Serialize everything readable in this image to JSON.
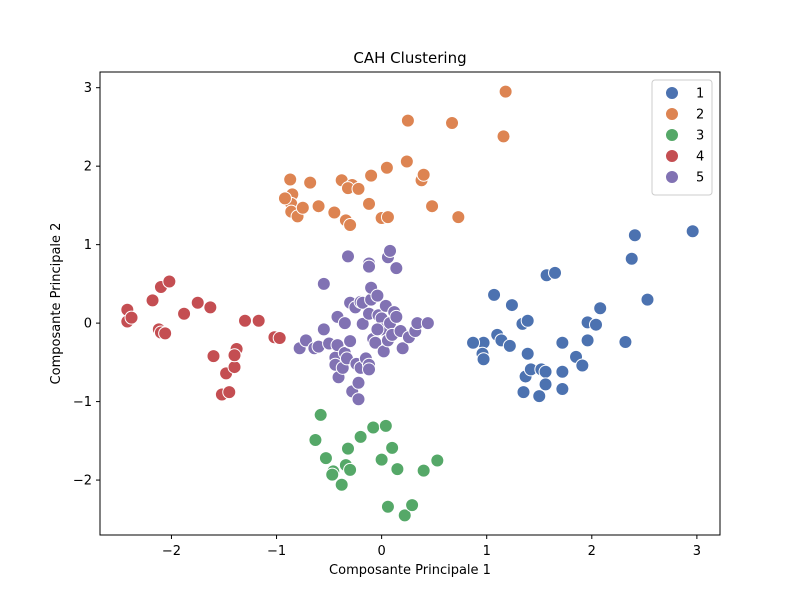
{
  "chart_data": {
    "type": "scatter",
    "title": "CAH Clustering",
    "xlabel": "Composante Principale 1",
    "ylabel": "Composante Principale 2",
    "xlim": [
      -2.68,
      3.22
    ],
    "ylim": [
      -2.7,
      3.2
    ],
    "xticks": [
      -2,
      -1,
      0,
      1,
      2,
      3
    ],
    "xtick_labels": [
      "−2",
      "−1",
      "0",
      "1",
      "2",
      "3"
    ],
    "yticks": [
      -2,
      -1,
      0,
      1,
      2,
      3
    ],
    "ytick_labels": [
      "−2",
      "−1",
      "0",
      "1",
      "2",
      "3"
    ],
    "grid": false,
    "legend_position": "top-right",
    "series": [
      {
        "name": "1",
        "color": "#4C72B0",
        "points": [
          [
            1.07,
            0.36
          ],
          [
            1.24,
            0.23
          ],
          [
            1.1,
            -0.15
          ],
          [
            1.14,
            -0.22
          ],
          [
            0.97,
            -0.25
          ],
          [
            0.87,
            -0.25
          ],
          [
            0.96,
            -0.39
          ],
          [
            0.97,
            -0.46
          ],
          [
            1.22,
            -0.29
          ],
          [
            1.34,
            -0.01
          ],
          [
            1.39,
            0.03
          ],
          [
            1.39,
            -0.39
          ],
          [
            1.37,
            -0.68
          ],
          [
            1.42,
            -0.59
          ],
          [
            1.35,
            -0.88
          ],
          [
            1.5,
            -0.93
          ],
          [
            1.52,
            -0.59
          ],
          [
            1.56,
            -0.62
          ],
          [
            1.56,
            -0.78
          ],
          [
            1.57,
            0.61
          ],
          [
            1.65,
            0.64
          ],
          [
            1.72,
            -0.25
          ],
          [
            1.72,
            -0.62
          ],
          [
            1.72,
            -0.84
          ],
          [
            1.85,
            -0.43
          ],
          [
            1.91,
            -0.54
          ],
          [
            1.96,
            0.01
          ],
          [
            1.96,
            -0.22
          ],
          [
            2.04,
            -0.02
          ],
          [
            2.08,
            0.19
          ],
          [
            2.32,
            -0.24
          ],
          [
            2.38,
            0.82
          ],
          [
            2.41,
            1.12
          ],
          [
            2.53,
            0.3
          ],
          [
            2.96,
            1.17
          ]
        ]
      },
      {
        "name": "2",
        "color": "#DD8452",
        "points": [
          [
            -0.87,
            1.83
          ],
          [
            -0.85,
            1.64
          ],
          [
            -0.86,
            1.52
          ],
          [
            -0.92,
            1.59
          ],
          [
            -0.86,
            1.42
          ],
          [
            -0.8,
            1.36
          ],
          [
            -0.75,
            1.47
          ],
          [
            -0.68,
            1.79
          ],
          [
            -0.6,
            1.49
          ],
          [
            -0.45,
            1.41
          ],
          [
            -0.38,
            1.82
          ],
          [
            -0.34,
            1.31
          ],
          [
            -0.3,
            1.25
          ],
          [
            -0.28,
            1.76
          ],
          [
            -0.32,
            1.72
          ],
          [
            -0.22,
            1.71
          ],
          [
            -0.12,
            1.52
          ],
          [
            -0.1,
            1.88
          ],
          [
            0.0,
            1.34
          ],
          [
            0.06,
            1.35
          ],
          [
            0.05,
            1.98
          ],
          [
            0.24,
            2.06
          ],
          [
            0.25,
            2.58
          ],
          [
            0.38,
            1.82
          ],
          [
            0.4,
            1.89
          ],
          [
            0.48,
            1.49
          ],
          [
            0.67,
            2.55
          ],
          [
            0.73,
            1.35
          ],
          [
            1.16,
            2.38
          ],
          [
            1.18,
            2.95
          ]
        ]
      },
      {
        "name": "3",
        "color": "#55A868",
        "points": [
          [
            -0.58,
            -1.17
          ],
          [
            -0.63,
            -1.49
          ],
          [
            -0.53,
            -1.72
          ],
          [
            -0.46,
            -1.89
          ],
          [
            -0.47,
            -1.93
          ],
          [
            -0.38,
            -2.06
          ],
          [
            -0.34,
            -1.81
          ],
          [
            -0.3,
            -1.87
          ],
          [
            -0.32,
            -1.6
          ],
          [
            -0.2,
            -1.45
          ],
          [
            -0.08,
            -1.33
          ],
          [
            0.04,
            -1.31
          ],
          [
            0.0,
            -1.74
          ],
          [
            0.1,
            -1.59
          ],
          [
            0.15,
            -1.86
          ],
          [
            0.06,
            -2.34
          ],
          [
            0.22,
            -2.45
          ],
          [
            0.29,
            -2.32
          ],
          [
            0.4,
            -1.88
          ],
          [
            0.53,
            -1.75
          ]
        ]
      },
      {
        "name": "4",
        "color": "#C44E52",
        "points": [
          [
            -2.42,
            0.02
          ],
          [
            -2.42,
            0.17
          ],
          [
            -2.38,
            0.07
          ],
          [
            -2.18,
            0.29
          ],
          [
            -2.1,
            0.46
          ],
          [
            -2.02,
            0.53
          ],
          [
            -2.12,
            -0.08
          ],
          [
            -2.1,
            -0.12
          ],
          [
            -2.06,
            -0.13
          ],
          [
            -1.88,
            0.12
          ],
          [
            -1.75,
            0.26
          ],
          [
            -1.63,
            0.2
          ],
          [
            -1.6,
            -0.42
          ],
          [
            -1.52,
            -0.91
          ],
          [
            -1.45,
            -0.88
          ],
          [
            -1.48,
            -0.64
          ],
          [
            -1.4,
            -0.56
          ],
          [
            -1.38,
            -0.33
          ],
          [
            -1.4,
            -0.41
          ],
          [
            -1.3,
            0.03
          ],
          [
            -1.17,
            0.03
          ],
          [
            -1.02,
            -0.18
          ],
          [
            -0.97,
            -0.19
          ]
        ]
      },
      {
        "name": "5",
        "color": "#8172B3",
        "points": [
          [
            -0.32,
            0.85
          ],
          [
            -0.12,
            0.76
          ],
          [
            -0.12,
            0.72
          ],
          [
            0.06,
            0.84
          ],
          [
            0.08,
            0.92
          ],
          [
            0.14,
            0.7
          ],
          [
            -0.78,
            -0.32
          ],
          [
            -0.72,
            -0.22
          ],
          [
            -0.64,
            -0.32
          ],
          [
            -0.6,
            -0.3
          ],
          [
            -0.55,
            -0.08
          ],
          [
            -0.5,
            -0.26
          ],
          [
            -0.44,
            -0.44
          ],
          [
            -0.44,
            -0.53
          ],
          [
            -0.41,
            -0.69
          ],
          [
            -0.42,
            -0.28
          ],
          [
            -0.42,
            0.08
          ],
          [
            -0.37,
            -0.57
          ],
          [
            -0.35,
            -0.38
          ],
          [
            -0.33,
            -0.45
          ],
          [
            -0.3,
            -0.24
          ],
          [
            -0.35,
            0.0
          ],
          [
            -0.3,
            0.26
          ],
          [
            -0.28,
            -0.87
          ],
          [
            -0.25,
            0.2
          ],
          [
            -0.24,
            -0.52
          ],
          [
            -0.22,
            -0.76
          ],
          [
            -0.2,
            -0.57
          ],
          [
            -0.2,
            0.27
          ],
          [
            -0.18,
            0.26
          ],
          [
            -0.18,
            -0.01
          ],
          [
            -0.15,
            -0.45
          ],
          [
            -0.12,
            -0.53
          ],
          [
            -0.1,
            0.3
          ],
          [
            -0.12,
            -0.59
          ],
          [
            -0.1,
            0.45
          ],
          [
            -0.12,
            0.12
          ],
          [
            -0.08,
            -0.2
          ],
          [
            -0.06,
            -0.25
          ],
          [
            -0.04,
            0.35
          ],
          [
            -0.03,
            0.1
          ],
          [
            0.0,
            0.06
          ],
          [
            0.0,
            -0.08
          ],
          [
            0.02,
            -0.36
          ],
          [
            0.04,
            0.22
          ],
          [
            0.06,
            -0.22
          ],
          [
            0.08,
            0.0
          ],
          [
            0.1,
            -0.15
          ],
          [
            0.12,
            0.14
          ],
          [
            0.14,
            0.08
          ],
          [
            0.18,
            -0.1
          ],
          [
            0.2,
            -0.32
          ],
          [
            0.26,
            -0.18
          ],
          [
            0.32,
            -0.1
          ],
          [
            0.34,
            0.0
          ],
          [
            0.44,
            0.0
          ],
          [
            -0.22,
            -0.97
          ],
          [
            -0.3,
            -0.23
          ],
          [
            -0.04,
            -0.08
          ],
          [
            -0.55,
            0.5
          ]
        ]
      }
    ]
  }
}
